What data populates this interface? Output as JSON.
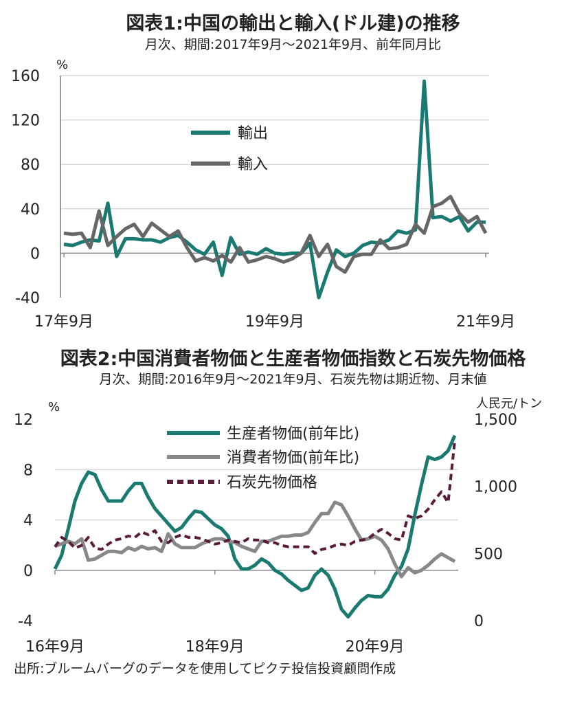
{
  "chart_data": [
    {
      "type": "line",
      "title": "図表1:中国の輸出と輸入(ドル建)の推移",
      "subtitle": "月次、期間:2017年9月～2021年9月、前年同月比",
      "ylabel": "%",
      "ylim": [
        -40,
        160
      ],
      "yticks": [
        -40,
        0,
        40,
        80,
        120,
        160
      ],
      "x_tick_labels": [
        "17年9月",
        "19年9月",
        "21年9月"
      ],
      "grid": true,
      "legend": "upper-middle",
      "series": [
        {
          "name": "輸出",
          "color": "#1a7a72",
          "values": [
            8,
            7,
            10,
            12,
            11,
            45,
            -3,
            13,
            13,
            12,
            12,
            10,
            14,
            16,
            10,
            3,
            -1,
            10,
            -20,
            14,
            -1,
            1,
            -1,
            4,
            0,
            -1,
            0,
            0,
            9,
            -40,
            -17,
            3,
            -3,
            0,
            7,
            10,
            9,
            12,
            20,
            18,
            21,
            155,
            32,
            33,
            29,
            33,
            20,
            28,
            28
          ],
          "start": "2017-09"
        },
        {
          "name": "輸入",
          "color": "#666666",
          "values": [
            18,
            17,
            18,
            5,
            38,
            7,
            15,
            22,
            26,
            15,
            27,
            21,
            15,
            20,
            5,
            -7,
            -4,
            -7,
            -2,
            -8,
            5,
            -8,
            -6,
            -3,
            -5,
            -8,
            -5,
            0,
            16,
            -3,
            8,
            -12,
            -17,
            -3,
            -1,
            -1,
            12,
            4,
            5,
            8,
            26,
            18,
            42,
            45,
            51,
            36,
            28,
            33,
            18
          ],
          "start": "2017-09"
        }
      ]
    },
    {
      "type": "line",
      "title": "図表2:中国消費者物価と生産者物価指数と石炭先物価格",
      "subtitle": "月次、期間:2016年9月～2021年9月、石炭先物は期近物、月末値",
      "ylabel": "%",
      "y2label": "人民元/トン",
      "ylim": [
        -4,
        12
      ],
      "yticks": [
        -4,
        0,
        4,
        8,
        12
      ],
      "y2lim": [
        0,
        1500
      ],
      "y2ticks": [
        "0",
        "500",
        "1,000",
        "1,500"
      ],
      "y2tick_values": [
        0,
        500,
        1000,
        1500
      ],
      "x_tick_labels": [
        "16年9月",
        "18年9月",
        "20年9月"
      ],
      "grid": true,
      "legend": "upper-middle",
      "series": [
        {
          "name": "生産者物価(前年比)",
          "color": "#1a7a72",
          "axis": "left",
          "start": "2016-09",
          "values": [
            0.1,
            1.2,
            3.3,
            5.5,
            6.9,
            7.8,
            7.6,
            6.4,
            5.5,
            5.5,
            5.5,
            6.3,
            6.9,
            6.9,
            5.8,
            4.9,
            4.3,
            3.7,
            3.1,
            3.4,
            4.1,
            4.7,
            4.6,
            4.1,
            3.6,
            3.3,
            2.7,
            0.9,
            0.1,
            0.1,
            0.4,
            0.9,
            0.6,
            0.0,
            -0.3,
            -0.8,
            -1.2,
            -1.6,
            -1.4,
            -0.4,
            0.1,
            -0.4,
            -1.5,
            -3.1,
            -3.7,
            -3.0,
            -2.4,
            -2.0,
            -2.1,
            -2.1,
            -1.5,
            -0.4,
            0.3,
            1.7,
            4.4,
            6.8,
            9.0,
            8.8,
            9.0,
            9.5,
            10.7
          ]
        },
        {
          "name": "消費者物価(前年比)",
          "color": "#888888",
          "axis": "left",
          "start": "2016-09",
          "values": [
            1.9,
            2.1,
            2.3,
            2.1,
            2.5,
            0.8,
            0.9,
            1.2,
            1.5,
            1.5,
            1.4,
            1.8,
            1.6,
            1.9,
            1.7,
            1.8,
            1.5,
            2.9,
            2.1,
            1.8,
            1.8,
            1.8,
            2.1,
            2.3,
            2.5,
            2.5,
            2.3,
            2.2,
            1.9,
            1.7,
            1.5,
            2.3,
            2.3,
            2.5,
            2.7,
            2.7,
            2.8,
            2.8,
            3.0,
            3.8,
            4.5,
            4.5,
            5.4,
            5.2,
            4.3,
            3.3,
            2.4,
            2.5,
            2.7,
            2.4,
            1.7,
            0.5,
            -0.5,
            0.2,
            -0.2,
            0.0,
            0.4,
            0.9,
            1.3,
            1.0,
            0.7
          ]
        },
        {
          "name": "石炭先物価格",
          "color": "#5a1a3a",
          "axis": "right",
          "style": "dashed",
          "start": "2016-09",
          "values": [
            550,
            620,
            590,
            540,
            560,
            620,
            540,
            530,
            570,
            600,
            610,
            630,
            620,
            660,
            640,
            670,
            590,
            580,
            620,
            640,
            620,
            620,
            610,
            590,
            570,
            580,
            600,
            590,
            580,
            610,
            600,
            600,
            580,
            580,
            560,
            550,
            550,
            550,
            550,
            500,
            530,
            540,
            560,
            570,
            560,
            590,
            600,
            610,
            650,
            680,
            650,
            610,
            600,
            780,
            760,
            780,
            830,
            900,
            960,
            880,
            1340
          ]
        }
      ]
    }
  ],
  "source": "出所:ブルームバーグのデータを使用してピクテ投信投資顧問作成"
}
